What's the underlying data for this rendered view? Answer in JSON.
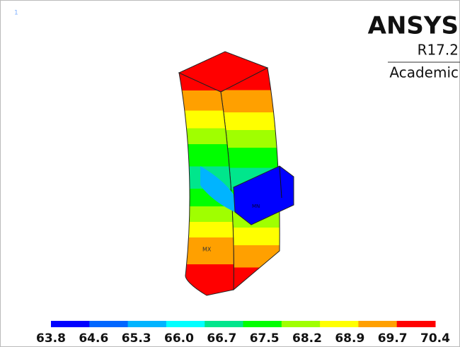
{
  "header": {
    "brand": "ANSYS",
    "version": "R17.2",
    "edition": "Academic"
  },
  "window_number": "1",
  "markers": {
    "max": "MX",
    "min": "MN"
  },
  "legend": {
    "colors": [
      "#0000ff",
      "#0066ff",
      "#00b4ff",
      "#00ffff",
      "#00e68c",
      "#00ff00",
      "#a0ff00",
      "#ffff00",
      "#ffa000",
      "#ff0000"
    ],
    "labels": [
      "63.8",
      "64.6",
      "65.3",
      "66.0",
      "66.7",
      "67.5",
      "68.2",
      "68.9",
      "69.7",
      "70.4"
    ]
  }
}
